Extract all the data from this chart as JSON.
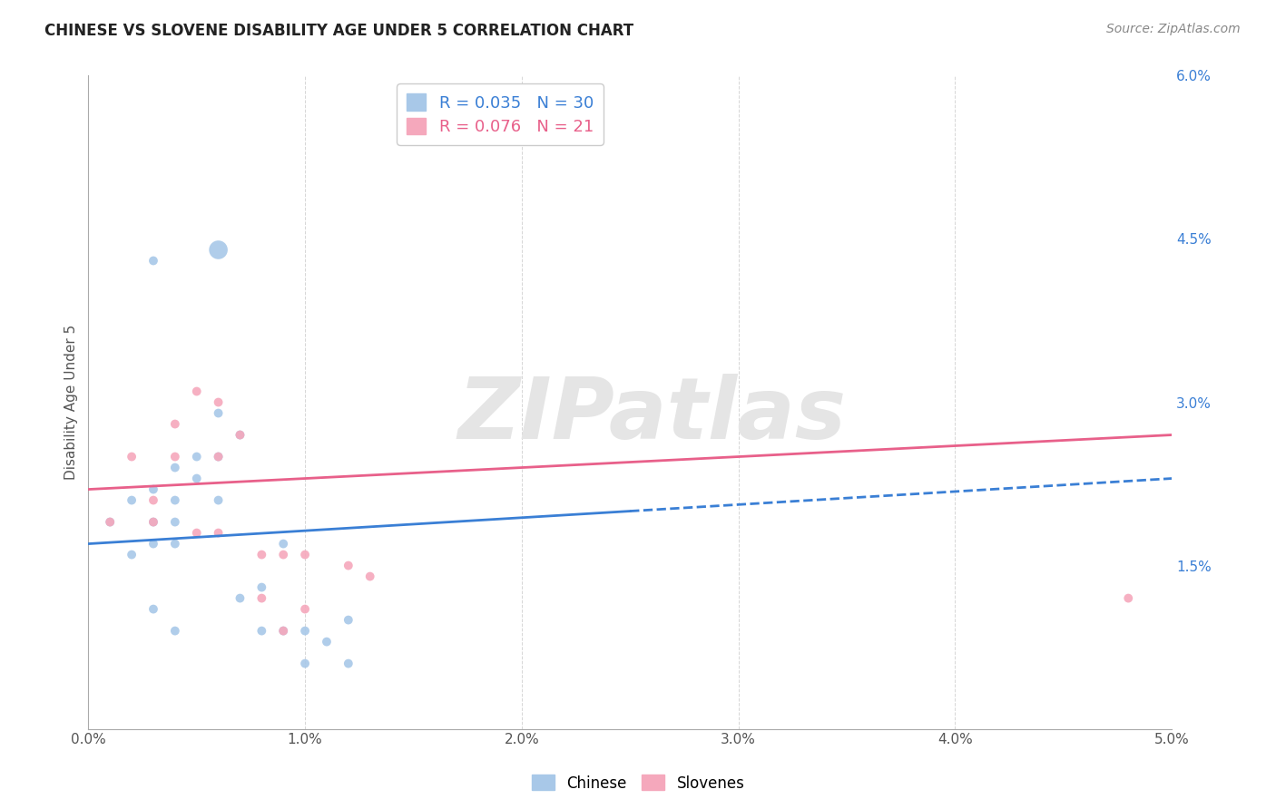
{
  "title": "CHINESE VS SLOVENE DISABILITY AGE UNDER 5 CORRELATION CHART",
  "source": "Source: ZipAtlas.com",
  "ylabel": "Disability Age Under 5",
  "xlim": [
    0.0,
    0.05
  ],
  "ylim": [
    0.0,
    0.06
  ],
  "xtick_vals": [
    0.0,
    0.01,
    0.02,
    0.03,
    0.04,
    0.05
  ],
  "xtick_labels": [
    "0.0%",
    "1.0%",
    "2.0%",
    "3.0%",
    "4.0%",
    "5.0%"
  ],
  "ytick_vals": [
    0.0,
    0.015,
    0.03,
    0.045,
    0.06
  ],
  "ytick_labels": [
    "",
    "1.5%",
    "3.0%",
    "4.5%",
    "6.0%"
  ],
  "chinese_R": 0.035,
  "chinese_N": 30,
  "slovene_R": 0.076,
  "slovene_N": 21,
  "chinese_color": "#a8c8e8",
  "slovene_color": "#f5a8bc",
  "chinese_line_color": "#3a7fd5",
  "slovene_line_color": "#e8608a",
  "chinese_x": [
    0.001,
    0.002,
    0.002,
    0.003,
    0.003,
    0.003,
    0.003,
    0.004,
    0.004,
    0.004,
    0.004,
    0.004,
    0.005,
    0.005,
    0.006,
    0.006,
    0.006,
    0.007,
    0.007,
    0.008,
    0.008,
    0.009,
    0.009,
    0.01,
    0.01,
    0.011,
    0.012,
    0.012,
    0.006,
    0.003
  ],
  "chinese_y": [
    0.019,
    0.021,
    0.016,
    0.022,
    0.019,
    0.017,
    0.011,
    0.024,
    0.021,
    0.019,
    0.017,
    0.009,
    0.025,
    0.023,
    0.029,
    0.025,
    0.021,
    0.027,
    0.012,
    0.013,
    0.009,
    0.017,
    0.009,
    0.009,
    0.006,
    0.008,
    0.01,
    0.006,
    0.044,
    0.043
  ],
  "chinese_sizes": [
    50,
    50,
    50,
    50,
    50,
    50,
    50,
    50,
    50,
    50,
    50,
    50,
    50,
    50,
    50,
    50,
    50,
    50,
    50,
    50,
    50,
    50,
    50,
    50,
    50,
    50,
    50,
    50,
    220,
    50
  ],
  "slovene_x": [
    0.001,
    0.002,
    0.003,
    0.003,
    0.004,
    0.004,
    0.005,
    0.005,
    0.006,
    0.006,
    0.006,
    0.007,
    0.008,
    0.008,
    0.009,
    0.009,
    0.01,
    0.01,
    0.012,
    0.013,
    0.048
  ],
  "slovene_y": [
    0.019,
    0.025,
    0.021,
    0.019,
    0.028,
    0.025,
    0.031,
    0.018,
    0.03,
    0.025,
    0.018,
    0.027,
    0.016,
    0.012,
    0.016,
    0.009,
    0.016,
    0.011,
    0.015,
    0.014,
    0.012
  ],
  "slovene_sizes": [
    50,
    50,
    50,
    50,
    50,
    50,
    50,
    50,
    50,
    50,
    50,
    50,
    50,
    50,
    50,
    50,
    50,
    50,
    50,
    50,
    50
  ],
  "chinese_line_x0": 0.0,
  "chinese_line_x1": 0.025,
  "chinese_line_x_dash": 0.025,
  "chinese_line_x_end": 0.05,
  "chinese_line_y0": 0.017,
  "chinese_line_y1": 0.02,
  "slovene_line_y0": 0.022,
  "slovene_line_y1": 0.027,
  "background_color": "#ffffff",
  "grid_color": "#cccccc",
  "watermark_text": "ZIPatlas",
  "watermark_color": "#e5e5e5",
  "title_fontsize": 12,
  "source_fontsize": 10,
  "tick_fontsize": 11,
  "legend_fontsize": 13,
  "ylabel_fontsize": 11
}
